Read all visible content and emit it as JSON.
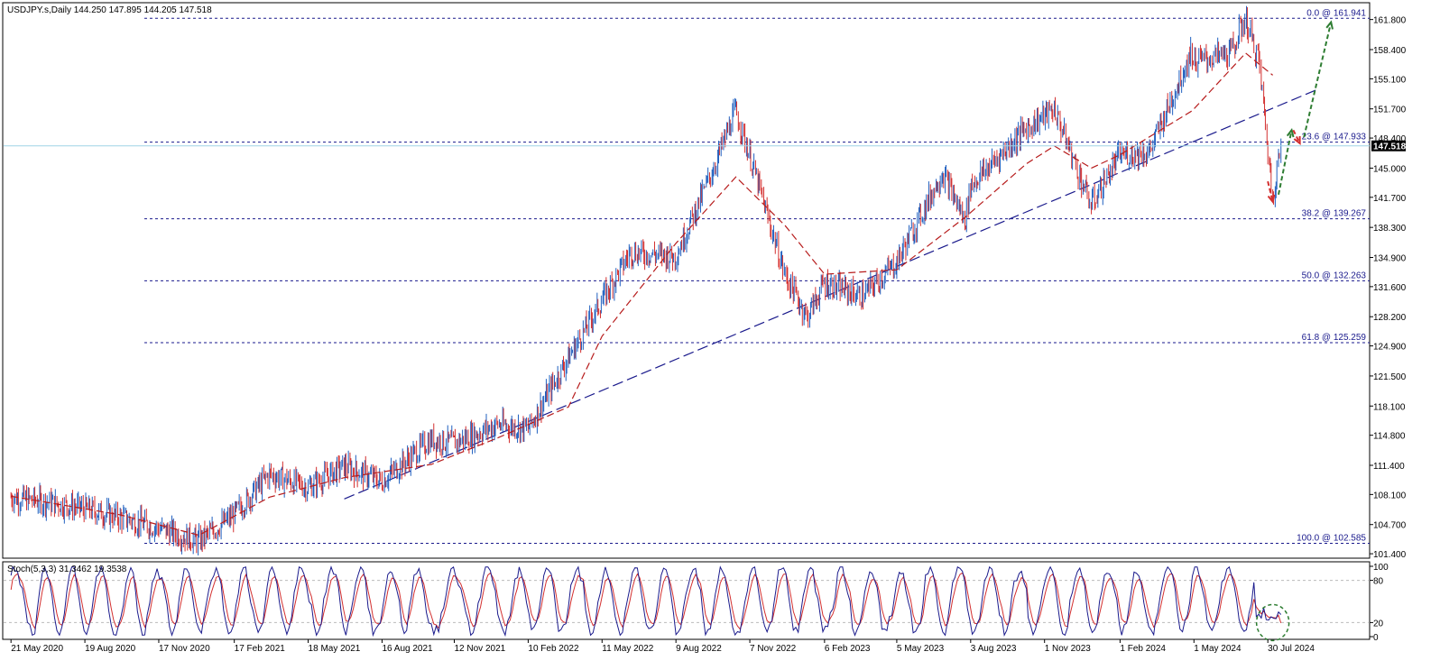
{
  "chart_data": {
    "type": "candlestick",
    "symbol_header": "USDJPY.s,Daily  144.250 147.895 144.205 147.518",
    "ohlc": {
      "open": 144.25,
      "high": 147.895,
      "low": 144.205,
      "close": 147.518
    },
    "current_price": 147.518,
    "current_price_label": "147.518",
    "ylim": [
      101.0,
      163.6
    ],
    "y_ticks": [
      "161.800",
      "158.400",
      "155.100",
      "151.700",
      "148.400",
      "145.000",
      "141.700",
      "138.300",
      "134.900",
      "131.600",
      "128.200",
      "124.900",
      "121.500",
      "118.100",
      "114.800",
      "111.400",
      "108.100",
      "104.700",
      "101.400"
    ],
    "x_ticks": [
      "21 May 2020",
      "19 Aug 2020",
      "17 Nov 2020",
      "17 Feb 2021",
      "18 May 2021",
      "16 Aug 2021",
      "12 Nov 2021",
      "10 Feb 2022",
      "11 May 2022",
      "9 Aug 2022",
      "7 Nov 2022",
      "6 Feb 2023",
      "5 May 2023",
      "3 Aug 2023",
      "1 Nov 2023",
      "1 Feb 2024",
      "1 May 2024",
      "30 Jul 2024"
    ],
    "fibonacci": [
      {
        "label": "0.0 @ 161.941",
        "value": 161.941
      },
      {
        "label": "23.6 @ 147.933",
        "value": 147.933
      },
      {
        "label": "38.2 @ 139.267",
        "value": 139.267
      },
      {
        "label": "50.0 @ 132.263",
        "value": 132.263
      },
      {
        "label": "61.8 @ 125.259",
        "value": 125.259
      },
      {
        "label": "100.0 @ 102.585",
        "value": 102.585
      }
    ],
    "price_path": [
      {
        "date": "2020-05-21",
        "value": 107.8
      },
      {
        "date": "2020-07-01",
        "value": 107.3
      },
      {
        "date": "2020-08-19",
        "value": 106.5
      },
      {
        "date": "2020-10-01",
        "value": 105.5
      },
      {
        "date": "2020-11-17",
        "value": 104.3
      },
      {
        "date": "2021-01-05",
        "value": 102.8
      },
      {
        "date": "2021-02-17",
        "value": 105.8
      },
      {
        "date": "2021-04-01",
        "value": 110.4
      },
      {
        "date": "2021-05-18",
        "value": 108.9
      },
      {
        "date": "2021-07-01",
        "value": 111.3
      },
      {
        "date": "2021-08-16",
        "value": 109.6
      },
      {
        "date": "2021-10-15",
        "value": 114.3
      },
      {
        "date": "2021-11-12",
        "value": 113.9
      },
      {
        "date": "2022-01-04",
        "value": 116.0
      },
      {
        "date": "2022-02-10",
        "value": 115.5
      },
      {
        "date": "2022-03-31",
        "value": 123.5
      },
      {
        "date": "2022-05-11",
        "value": 130.0
      },
      {
        "date": "2022-06-15",
        "value": 135.5
      },
      {
        "date": "2022-08-09",
        "value": 135.0
      },
      {
        "date": "2022-09-22",
        "value": 144.5
      },
      {
        "date": "2022-10-21",
        "value": 151.5
      },
      {
        "date": "2022-11-07",
        "value": 146.5
      },
      {
        "date": "2022-12-20",
        "value": 133.0
      },
      {
        "date": "2023-01-16",
        "value": 128.2
      },
      {
        "date": "2023-02-06",
        "value": 132.0
      },
      {
        "date": "2023-03-24",
        "value": 130.5
      },
      {
        "date": "2023-05-05",
        "value": 134.3
      },
      {
        "date": "2023-06-30",
        "value": 144.5
      },
      {
        "date": "2023-07-28",
        "value": 139.0
      },
      {
        "date": "2023-08-03",
        "value": 143.0
      },
      {
        "date": "2023-10-10",
        "value": 149.5
      },
      {
        "date": "2023-11-13",
        "value": 151.7
      },
      {
        "date": "2023-12-28",
        "value": 140.8
      },
      {
        "date": "2024-02-01",
        "value": 146.5
      },
      {
        "date": "2024-03-08",
        "value": 146.8
      },
      {
        "date": "2024-04-29",
        "value": 158.3
      },
      {
        "date": "2024-05-01",
        "value": 157.0
      },
      {
        "date": "2024-06-15",
        "value": 158.0
      },
      {
        "date": "2024-07-03",
        "value": 161.9
      },
      {
        "date": "2024-07-20",
        "value": 157.0
      },
      {
        "date": "2024-08-05",
        "value": 141.7
      },
      {
        "date": "2024-08-15",
        "value": 147.5
      }
    ],
    "moving_average": [
      {
        "date": "2020-05-21",
        "value": 107.9
      },
      {
        "date": "2020-10-01",
        "value": 105.8
      },
      {
        "date": "2021-01-05",
        "value": 103.5
      },
      {
        "date": "2021-04-01",
        "value": 107.8
      },
      {
        "date": "2021-07-01",
        "value": 110.0
      },
      {
        "date": "2021-10-15",
        "value": 111.5
      },
      {
        "date": "2022-01-04",
        "value": 114.5
      },
      {
        "date": "2022-03-31",
        "value": 118.0
      },
      {
        "date": "2022-05-11",
        "value": 126.0
      },
      {
        "date": "2022-08-09",
        "value": 136.5
      },
      {
        "date": "2022-10-21",
        "value": 144.0
      },
      {
        "date": "2022-12-20",
        "value": 138.5
      },
      {
        "date": "2023-02-06",
        "value": 133.0
      },
      {
        "date": "2023-05-05",
        "value": 133.5
      },
      {
        "date": "2023-07-28",
        "value": 139.5
      },
      {
        "date": "2023-10-10",
        "value": 145.5
      },
      {
        "date": "2023-11-13",
        "value": 147.5
      },
      {
        "date": "2023-12-28",
        "value": 145.0
      },
      {
        "date": "2024-02-01",
        "value": 146.5
      },
      {
        "date": "2024-04-29",
        "value": 151.5
      },
      {
        "date": "2024-07-03",
        "value": 158.0
      },
      {
        "date": "2024-08-05",
        "value": 155.5
      }
    ],
    "trendline": {
      "start": {
        "date": "2021-07-01",
        "value": 107.6
      },
      "end": {
        "date": "2024-10-01",
        "value": 154.0
      }
    },
    "projection_arrows": [
      {
        "color": "#d32f2f",
        "from": {
          "date": "2024-07-30",
          "value": 143.5
        },
        "to": {
          "date": "2024-08-05",
          "value": 141.2
        }
      },
      {
        "color": "#2e7d32",
        "from": {
          "date": "2024-08-12",
          "value": 142.0
        },
        "to": {
          "date": "2024-08-28",
          "value": 149.3
        }
      },
      {
        "color": "#d32f2f",
        "from": {
          "date": "2024-08-30",
          "value": 149.3
        },
        "to": {
          "date": "2024-09-07",
          "value": 147.8
        }
      },
      {
        "color": "#2e7d32",
        "from": {
          "date": "2024-09-12",
          "value": 148.5
        },
        "to": {
          "date": "2024-10-15",
          "value": 161.5
        }
      }
    ],
    "colors": {
      "bull": "#1f5fbf",
      "bear": "#d32f2f",
      "moving_average": "#b71c1c",
      "fib": "#1a1a8c",
      "trendline": "#1a1a8c",
      "current_price": "#000000",
      "stoch_main": "#1a1a8c",
      "stoch_signal": "#d32f2f",
      "circle": "#2e7d32"
    }
  },
  "stochastic": {
    "header": "Stoch(5,3,3) 31.3462 19.3538",
    "main": 31.3462,
    "signal": 19.3538,
    "ylim": [
      0,
      100
    ],
    "levels": [
      20,
      80
    ],
    "y_ticks": [
      "100",
      "80",
      "20",
      "0"
    ]
  }
}
